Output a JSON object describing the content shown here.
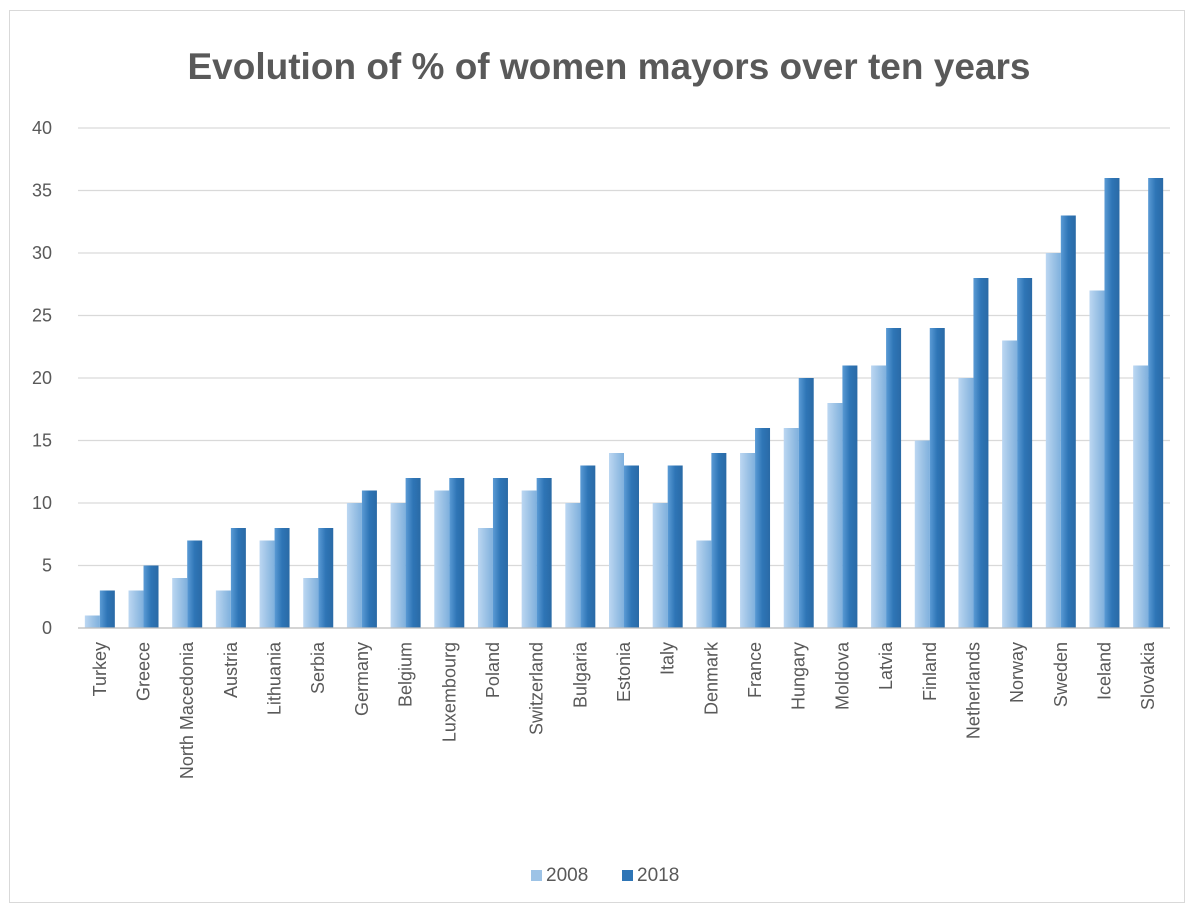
{
  "chart_data": {
    "type": "bar",
    "title": "Evolution of % of women mayors over ten years",
    "xlabel": "",
    "ylabel": "",
    "ylim": [
      0,
      40
    ],
    "yticks": [
      "0",
      "5",
      "10",
      "15",
      "20",
      "25",
      "30",
      "35",
      "40"
    ],
    "grid": "horizontal",
    "legend_position": "bottom",
    "categories": [
      "Turkey",
      "Greece",
      "North Macedonia",
      "Austria",
      "Lithuania",
      "Serbia",
      "Germany",
      "Belgium",
      "Luxembourg",
      "Poland",
      "Switzerland",
      "Bulgaria",
      "Estonia",
      "Italy",
      "Denmark",
      "France",
      "Hungary",
      "Moldova",
      "Latvia",
      "Finland",
      "Netherlands",
      "Norway",
      "Sweden",
      "Iceland",
      "Slovakia"
    ],
    "series": [
      {
        "name": "2008",
        "color": "#9dc3e6",
        "values": [
          1,
          3,
          4,
          3,
          7,
          4,
          10,
          10,
          11,
          8,
          11,
          10,
          14,
          10,
          7,
          14,
          16,
          18,
          21,
          15,
          20,
          23,
          30,
          27,
          21
        ]
      },
      {
        "name": "2018",
        "color": "#2e75b6",
        "values": [
          3,
          5,
          7,
          8,
          8,
          8,
          11,
          12,
          12,
          12,
          12,
          13,
          13,
          13,
          14,
          16,
          20,
          21,
          24,
          24,
          28,
          28,
          33,
          36,
          36
        ]
      }
    ]
  }
}
